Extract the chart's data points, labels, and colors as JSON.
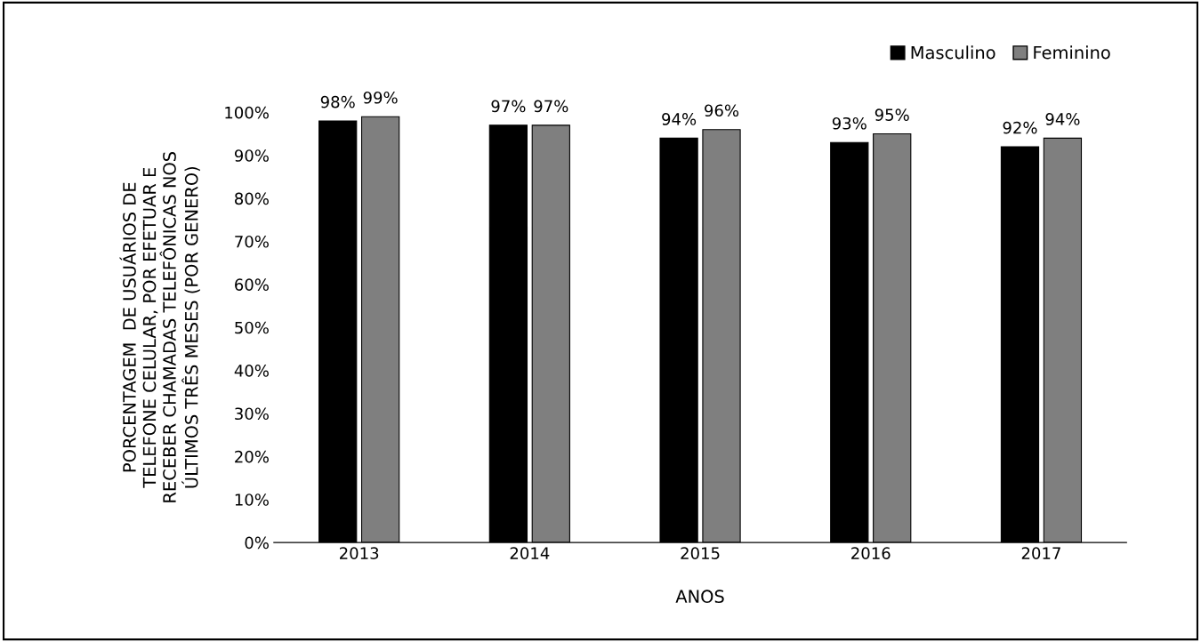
{
  "chart_data": {
    "type": "bar",
    "xlabel": "ANOS",
    "ylabel": "PORCENTAGEM  DE USUÁRIOS DE\nTELEFONE CELULAR, POR EFETUAR E\nRECEBER CHAMADAS TELEFÔNICAS NOS\nÚLTIMOS TRÊS MESES (POR GENERO)",
    "categories": [
      "2013",
      "2014",
      "2015",
      "2016",
      "2017"
    ],
    "series": [
      {
        "name": "Masculino",
        "color": "#000000",
        "values": [
          98,
          97,
          94,
          93,
          92
        ],
        "value_labels": [
          "98%",
          "97%",
          "94%",
          "93%",
          "92%"
        ]
      },
      {
        "name": "Feminino",
        "color": "#7f7f7f",
        "values": [
          99,
          97,
          96,
          95,
          94
        ],
        "value_labels": [
          "99%",
          "97%",
          "96%",
          "95%",
          "94%"
        ]
      }
    ],
    "ylim": [
      0,
      100
    ],
    "yticks": [
      {
        "value": 0,
        "label": "0%"
      },
      {
        "value": 10,
        "label": "10%"
      },
      {
        "value": 20,
        "label": "20%"
      },
      {
        "value": 30,
        "label": "30%"
      },
      {
        "value": 40,
        "label": "40%"
      },
      {
        "value": 50,
        "label": "50%"
      },
      {
        "value": 60,
        "label": "60%"
      },
      {
        "value": 70,
        "label": "70%"
      },
      {
        "value": 80,
        "label": "80%"
      },
      {
        "value": 90,
        "label": "90%"
      },
      {
        "value": 100,
        "label": "100%"
      }
    ],
    "grid": false,
    "legend": "top right"
  }
}
